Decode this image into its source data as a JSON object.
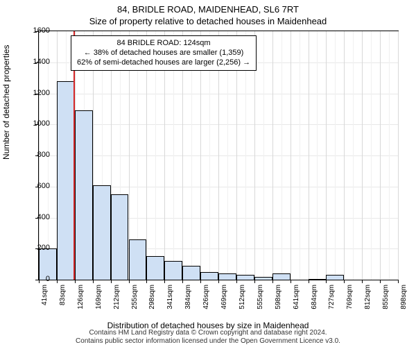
{
  "header": {
    "address": "84, BRIDLE ROAD, MAIDENHEAD, SL6 7RT",
    "subtitle": "Size of property relative to detached houses in Maidenhead"
  },
  "ylabel": "Number of detached properties",
  "xlabel": "Distribution of detached houses by size in Maidenhead",
  "footer": {
    "line1": "Contains HM Land Registry data © Crown copyright and database right 2024.",
    "line2": "Contains public sector information licensed under the Open Government Licence v3.0."
  },
  "chart": {
    "type": "histogram",
    "background_color": "#ffffff",
    "grid_color_h": "#e8e8e8",
    "grid_color_v_major": "#d8d8d8",
    "grid_color_v_minor": "#f0f0f0",
    "bar_fill": "#cfe0f4",
    "bar_stroke": "#000000",
    "marker_color": "#d62728",
    "ylim": [
      0,
      1600
    ],
    "ytick_step": 200,
    "x_start": 41,
    "x_bin_width": 42.8,
    "x_labels": [
      "41sqm",
      "83sqm",
      "126sqm",
      "169sqm",
      "212sqm",
      "255sqm",
      "298sqm",
      "341sqm",
      "384sqm",
      "426sqm",
      "469sqm",
      "512sqm",
      "555sqm",
      "598sqm",
      "641sqm",
      "684sqm",
      "727sqm",
      "769sqm",
      "812sqm",
      "855sqm",
      "898sqm"
    ],
    "bars": [
      200,
      1280,
      1090,
      610,
      550,
      260,
      150,
      120,
      90,
      50,
      40,
      30,
      20,
      40,
      0,
      5,
      30,
      0,
      0,
      0
    ],
    "marker_x": 124
  },
  "annotation": {
    "line1": "84 BRIDLE ROAD: 124sqm",
    "line2": "← 38% of detached houses are smaller (1,359)",
    "line3": "62% of semi-detached houses are larger (2,256) →"
  }
}
